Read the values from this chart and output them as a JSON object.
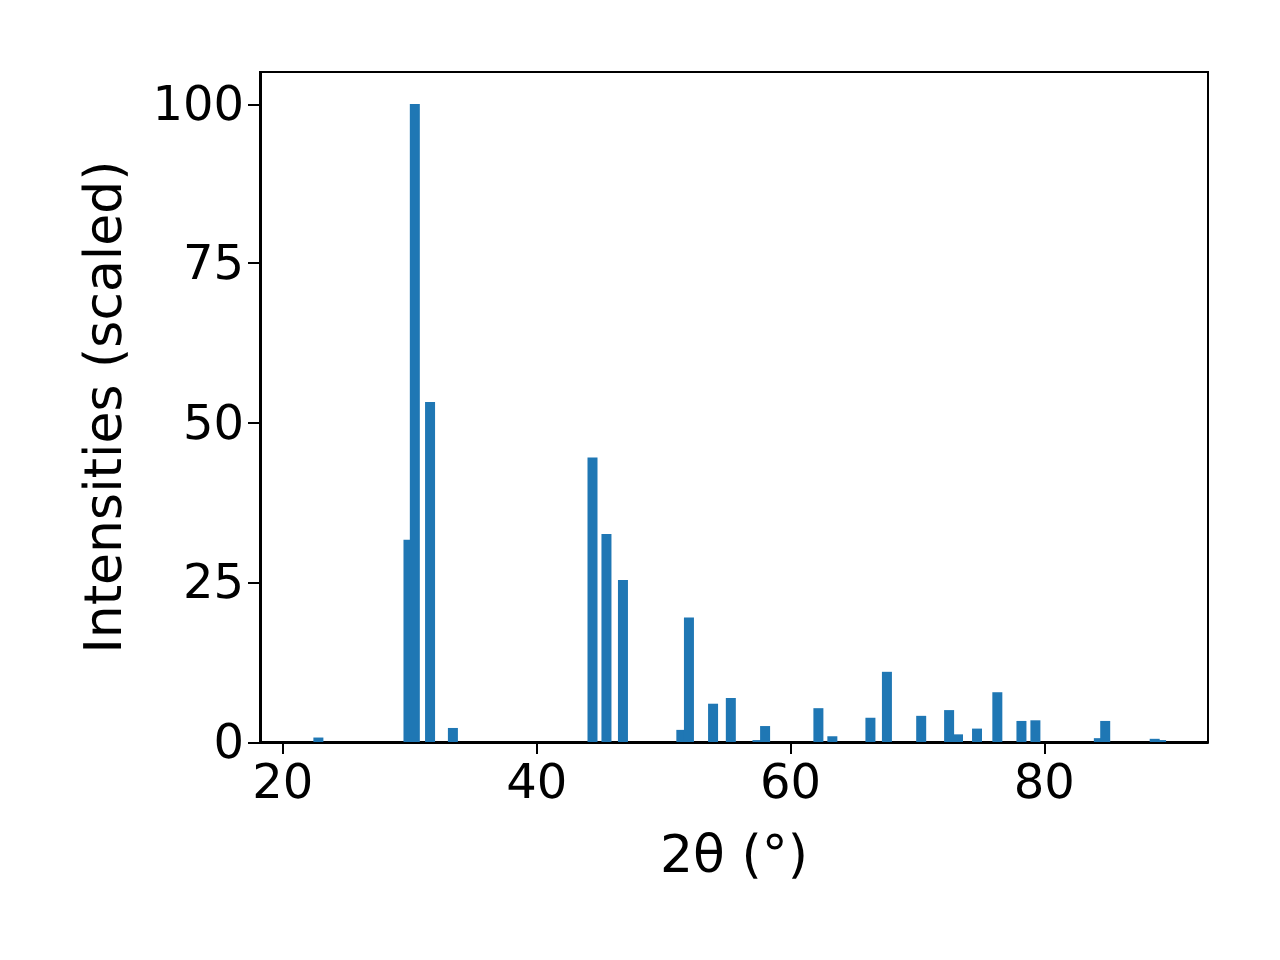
{
  "chart_data": {
    "type": "bar",
    "xlabel": "2θ (°)",
    "ylabel": "Intensities (scaled)",
    "x": [
      22.8,
      29.9,
      30.4,
      31.6,
      33.4,
      44.4,
      45.5,
      46.8,
      51.4,
      52.0,
      53.9,
      55.3,
      57.4,
      58.0,
      62.2,
      63.3,
      66.3,
      67.6,
      70.3,
      72.5,
      73.2,
      74.7,
      76.3,
      78.2,
      79.3,
      84.3,
      84.8,
      88.7,
      89.2
    ],
    "values": [
      0.7,
      31.7,
      100,
      53.3,
      2.2,
      44.6,
      32.6,
      25.4,
      1.9,
      19.5,
      6.0,
      6.9,
      0.3,
      2.5,
      5.3,
      0.9,
      3.8,
      11.0,
      4.1,
      5.0,
      1.2,
      2.1,
      7.8,
      3.3,
      3.4,
      0.6,
      3.3,
      0.5,
      0.3
    ],
    "color": "#1f77b4",
    "xlim": [
      18.2,
      92.9
    ],
    "xticks": [
      20,
      40,
      60,
      80
    ],
    "ylim": [
      0,
      105
    ],
    "yticks": [
      0,
      25,
      50,
      75,
      100
    ],
    "grid": false
  }
}
